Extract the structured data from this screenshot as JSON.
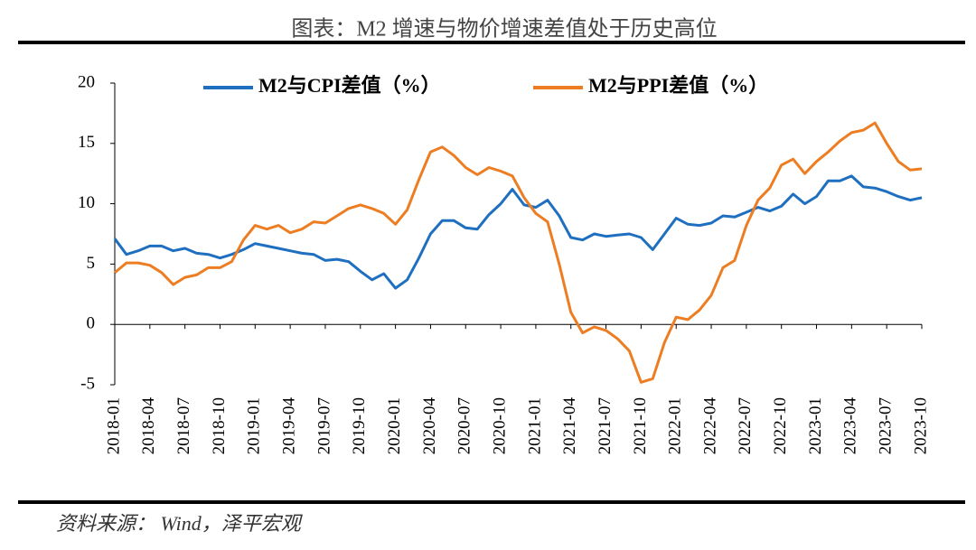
{
  "chart_data": {
    "type": "line",
    "title": "图表：M2 增速与物价增速差值处于历史高位",
    "source": "资料来源： Wind，泽平宏观",
    "categories": [
      "2018-01",
      null,
      null,
      "2018-04",
      null,
      null,
      "2018-07",
      null,
      null,
      "2018-10",
      null,
      null,
      "2019-01",
      null,
      null,
      "2019-04",
      null,
      null,
      "2019-07",
      null,
      null,
      "2019-10",
      null,
      null,
      "2020-01",
      null,
      null,
      "2020-04",
      null,
      null,
      "2020-07",
      null,
      null,
      "2020-10",
      null,
      null,
      "2021-01",
      null,
      null,
      "2021-04",
      null,
      null,
      "2021-07",
      null,
      null,
      "2021-10",
      null,
      null,
      "2022-01",
      null,
      null,
      "2022-04",
      null,
      null,
      "2022-07",
      null,
      null,
      "2022-10",
      null,
      null,
      "2023-01",
      null,
      null,
      "2023-04",
      null,
      null,
      "2023-07",
      null,
      null,
      "2023-10"
    ],
    "series": [
      {
        "name": "M2与CPI差值（%）",
        "color": "#1f6fc0",
        "values": [
          7.1,
          5.8,
          6.1,
          6.5,
          6.5,
          6.1,
          6.3,
          5.9,
          5.8,
          5.5,
          5.8,
          6.2,
          6.7,
          6.5,
          6.3,
          6.1,
          5.9,
          5.8,
          5.3,
          5.4,
          5.2,
          4.4,
          3.7,
          4.2,
          3.0,
          3.7,
          5.5,
          7.5,
          8.6,
          8.6,
          8.0,
          7.9,
          9.1,
          10.0,
          11.2,
          9.9,
          9.7,
          10.3,
          9.0,
          7.2,
          7.0,
          7.5,
          7.3,
          7.4,
          7.5,
          7.2,
          6.2,
          7.5,
          8.8,
          8.3,
          8.2,
          8.4,
          9.0,
          8.9,
          9.3,
          9.7,
          9.4,
          9.8,
          10.8,
          10.0,
          10.6,
          11.9,
          11.9,
          12.3,
          11.4,
          11.3,
          11.0,
          10.6,
          10.3,
          10.5
        ]
      },
      {
        "name": "M2与PPI差值（%）",
        "color": "#ed7d22",
        "values": [
          4.3,
          5.1,
          5.1,
          4.9,
          4.3,
          3.3,
          3.9,
          4.1,
          4.7,
          4.7,
          5.2,
          7.0,
          8.2,
          7.9,
          8.2,
          7.6,
          7.9,
          8.5,
          8.4,
          9.0,
          9.6,
          9.9,
          9.6,
          9.2,
          8.3,
          9.5,
          12.0,
          14.3,
          14.7,
          14.0,
          13.0,
          12.4,
          13.0,
          12.7,
          12.3,
          10.5,
          9.2,
          8.5,
          5.0,
          1.0,
          -0.7,
          -0.2,
          -0.5,
          -1.2,
          -2.2,
          -4.8,
          -4.5,
          -1.5,
          0.6,
          0.4,
          1.2,
          2.4,
          4.7,
          5.3,
          8.2,
          10.3,
          11.3,
          13.2,
          13.7,
          12.5,
          13.5,
          14.3,
          15.2,
          15.9,
          16.1,
          16.7,
          15.0,
          13.5,
          12.8,
          12.9
        ]
      }
    ],
    "ylim": [
      -5,
      20
    ],
    "yticks": [
      -5,
      0,
      5,
      10,
      15,
      20
    ],
    "legend": "top"
  }
}
